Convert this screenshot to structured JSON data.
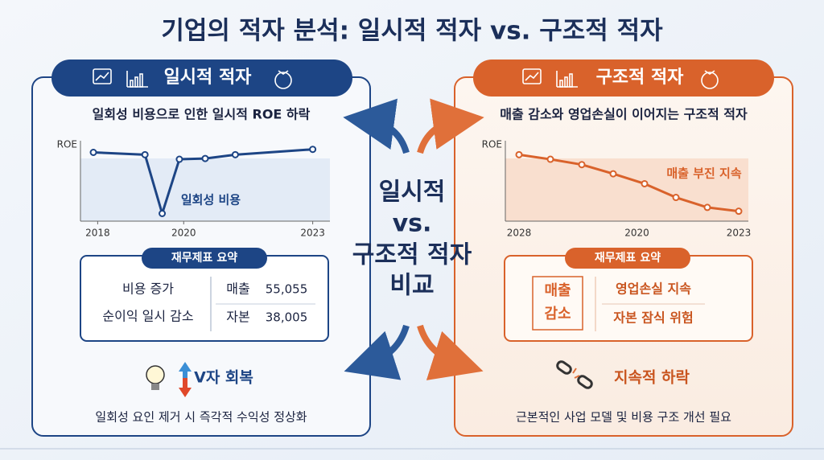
{
  "title": "기업의 적자 분석: 일시적 적자 vs. 구조적 적자",
  "center": [
    "일시적",
    "vs.",
    "구조적 적자",
    "비교"
  ],
  "left": {
    "header": "일시적 적자",
    "subtitle": "일회성 비용으로 인한 일시적 ROE 하락",
    "chart": {
      "type": "line",
      "y_label": "ROE",
      "annotation": "일회성 비용",
      "x": [
        2017.9,
        2019.1,
        2019.5,
        2019.9,
        2020.5,
        2021.2,
        2023
      ],
      "values": [
        90,
        87,
        10,
        81,
        82,
        87,
        94
      ],
      "xlim": [
        2017.6,
        2023.4
      ],
      "xticks": [
        2018,
        2020,
        2023
      ],
      "ylim": [
        0,
        100
      ],
      "color": "#1d4585"
    },
    "summary": {
      "title": "재무제표 요약",
      "items": [
        "비용 증가",
        "순이익 일시 감소"
      ],
      "table": [
        [
          "매출",
          "55,055"
        ],
        [
          "자본",
          "38,005"
        ]
      ]
    },
    "outcome": "V자 회복",
    "note": "일회성 요인 제거 시 즉각적 수익성 정상화"
  },
  "right": {
    "header": "구조적 적자",
    "subtitle": "매출 감소와 영업손실이 이어지는 구조적 적자",
    "chart": {
      "type": "line",
      "y_label": "ROE",
      "annotation": "매출 부진 지속",
      "values": [
        87,
        81,
        74,
        62,
        49,
        31,
        18,
        13
      ],
      "x_labels": [
        "2028",
        "2020",
        "2023"
      ],
      "ylim": [
        0,
        100
      ],
      "color": "#d9622b"
    },
    "summary": {
      "title": "재무제표 요약",
      "box": [
        "매출",
        "감소"
      ],
      "items": [
        "영업손실 지속",
        "자본 잠식 위험"
      ]
    },
    "outcome": "지속적 하락",
    "note": "근본적인 사업 모델 및 비용 구조 개선 필요"
  }
}
